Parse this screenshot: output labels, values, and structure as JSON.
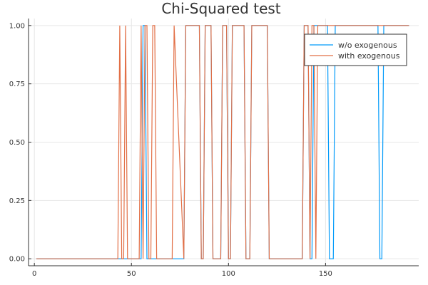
{
  "chart_data": {
    "type": "line",
    "title": "Chi-Squared test",
    "xlabel": "",
    "ylabel": "",
    "xlim": [
      -3,
      198
    ],
    "ylim": [
      -0.03,
      1.03
    ],
    "xticks": [
      0,
      50,
      100,
      150
    ],
    "xtick_labels": [
      "0",
      "50",
      "100",
      "150"
    ],
    "yticks": [
      0,
      0.25,
      0.5,
      0.75,
      1
    ],
    "ytick_labels": [
      "0.00",
      "0.25",
      "0.50",
      "0.75",
      "1.00"
    ],
    "grid": true,
    "legend_position": "top-right",
    "series": [
      {
        "name": "w/o exogenous",
        "color": "#009AFA",
        "x": [
          1,
          55,
          56,
          57,
          58,
          77,
          78,
          85,
          86,
          87,
          88,
          91,
          92,
          96,
          97,
          99,
          100,
          101,
          102,
          108,
          109,
          111,
          112,
          120,
          121,
          138,
          139,
          141,
          142,
          143,
          144,
          151,
          152,
          154,
          155,
          177,
          178,
          179,
          180,
          193
        ],
        "y": [
          0,
          0,
          1,
          1,
          0,
          0,
          1,
          1,
          0,
          0,
          1,
          1,
          0,
          0,
          1,
          1,
          0,
          0,
          1,
          1,
          0,
          0,
          1,
          1,
          0,
          0,
          1,
          1,
          0,
          0,
          1,
          1,
          0,
          0,
          1,
          1,
          0,
          0,
          1,
          1
        ]
      },
      {
        "name": "with exogenous",
        "color": "#E26F46",
        "x": [
          1,
          43,
          44,
          45,
          46,
          47,
          48,
          54,
          55,
          56,
          57,
          58,
          59,
          60,
          61,
          62,
          63,
          71,
          72,
          77,
          78,
          85,
          86,
          87,
          88,
          91,
          92,
          96,
          97,
          99,
          100,
          101,
          102,
          108,
          109,
          111,
          112,
          120,
          121,
          138,
          139,
          141,
          142,
          143,
          144,
          145,
          146,
          193
        ],
        "y": [
          0,
          0,
          1,
          0,
          0,
          1,
          0,
          0,
          1,
          0,
          1,
          1,
          0,
          0,
          1,
          1,
          0,
          0,
          1,
          0,
          1,
          1,
          0,
          0,
          1,
          1,
          0,
          0,
          1,
          1,
          0,
          0,
          1,
          1,
          0,
          0,
          1,
          1,
          0,
          0,
          1,
          1,
          0,
          1,
          1,
          0,
          1,
          1
        ]
      }
    ]
  }
}
